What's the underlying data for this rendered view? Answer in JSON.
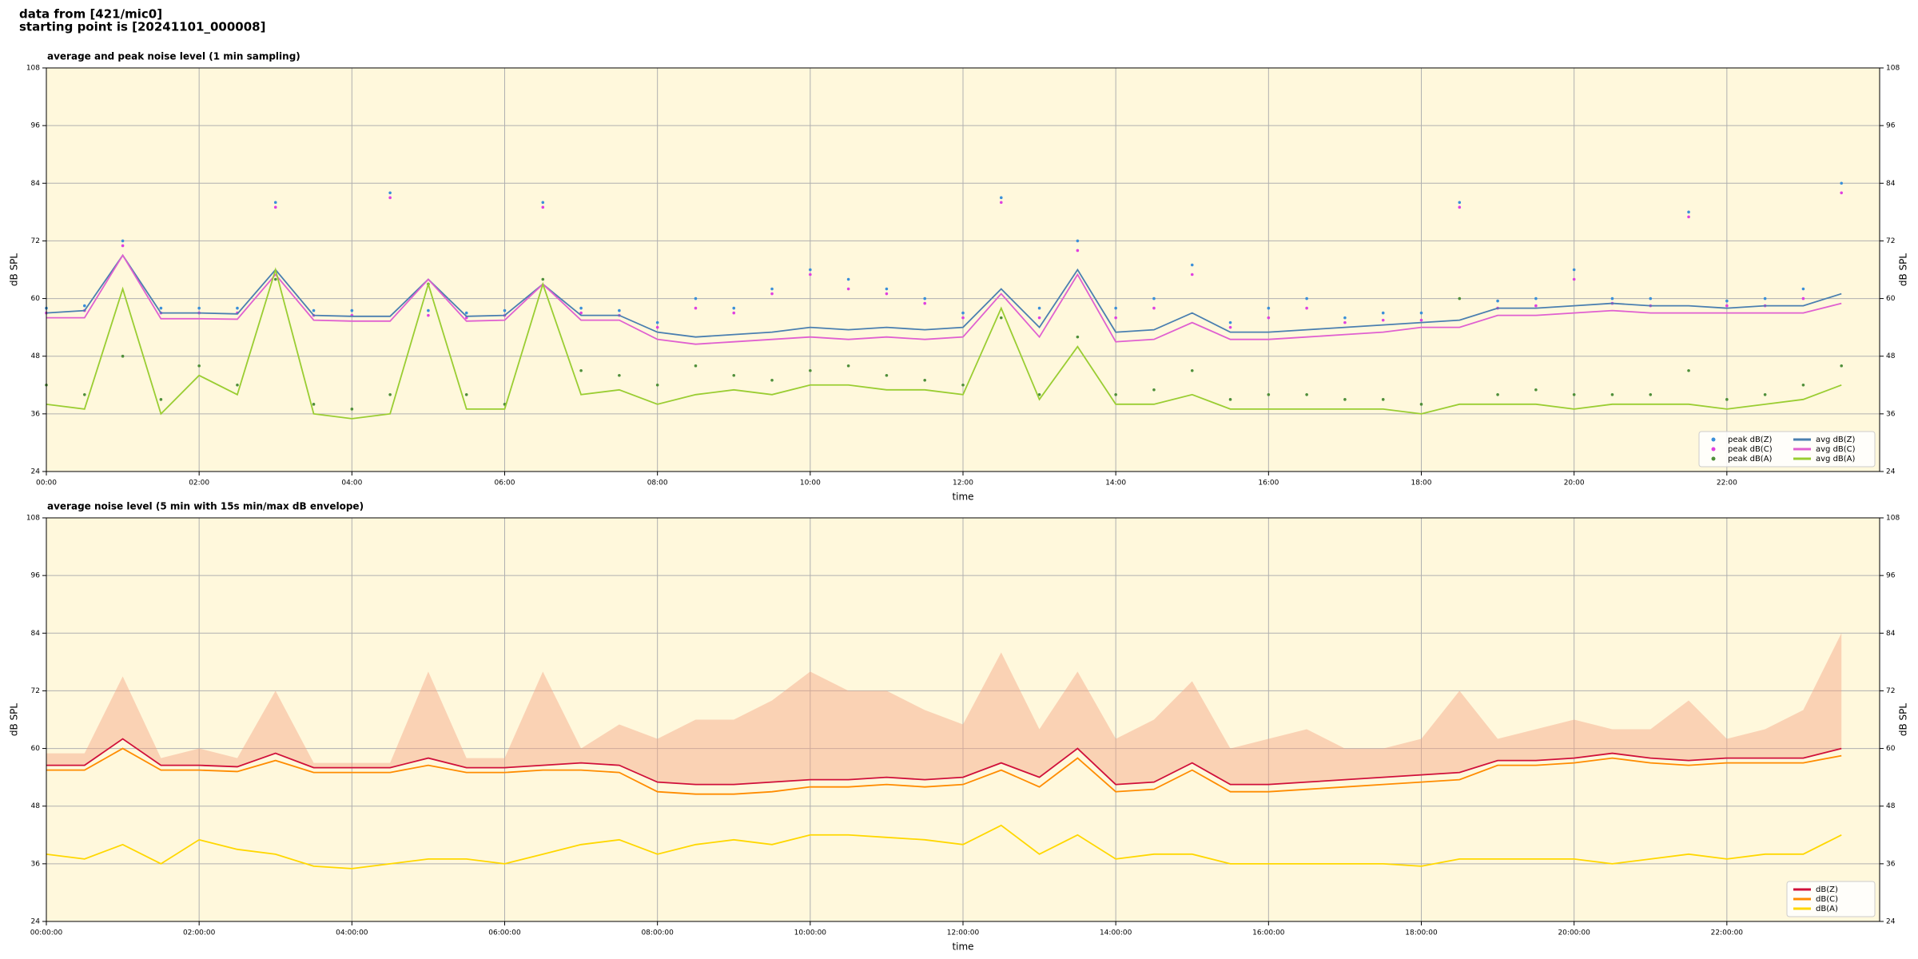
{
  "header": [
    "data from [421/mic0]",
    "starting point is [20241101_000008]"
  ],
  "chart_data": [
    {
      "type": "line",
      "title": "average and peak noise level (1 min sampling)",
      "xlabel": "time",
      "ylabel": "dB SPL",
      "x": [
        0,
        0.5,
        1,
        1.5,
        2,
        2.5,
        3,
        3.5,
        4,
        4.5,
        5,
        5.5,
        6,
        6.5,
        7,
        7.5,
        8,
        8.5,
        9,
        9.5,
        10,
        10.5,
        11,
        11.5,
        12,
        12.5,
        13,
        13.5,
        14,
        14.5,
        15,
        15.5,
        16,
        16.5,
        17,
        17.5,
        18,
        18.5,
        19,
        19.5,
        20,
        20.5,
        21,
        21.5,
        22,
        22.5,
        23,
        23.5
      ],
      "xlim": [
        0,
        24
      ],
      "xticks": [
        {
          "value": 0,
          "label": "00:00"
        },
        {
          "value": 2,
          "label": "02:00"
        },
        {
          "value": 4,
          "label": "04:00"
        },
        {
          "value": 6,
          "label": "06:00"
        },
        {
          "value": 8,
          "label": "08:00"
        },
        {
          "value": 10,
          "label": "10:00"
        },
        {
          "value": 12,
          "label": "12:00"
        },
        {
          "value": 14,
          "label": "14:00"
        },
        {
          "value": 16,
          "label": "16:00"
        },
        {
          "value": 18,
          "label": "18:00"
        },
        {
          "value": 20,
          "label": "20:00"
        },
        {
          "value": 22,
          "label": "22:00"
        }
      ],
      "ylim": [
        24,
        108
      ],
      "yticks": [
        24,
        36,
        48,
        60,
        72,
        84,
        96,
        108
      ],
      "grid": true,
      "legend": "lower right",
      "background": "#fff8dc",
      "series": [
        {
          "name": "peak dB(Z)",
          "type": "scatter",
          "color": "#3a8fd9",
          "values": [
            58,
            58.5,
            72,
            58,
            58,
            58,
            80,
            57.5,
            57.5,
            82,
            57.5,
            57,
            57.5,
            80,
            58,
            57.5,
            55,
            60,
            58,
            62,
            66,
            64,
            62,
            60,
            57,
            81,
            58,
            72,
            58,
            60,
            67,
            55,
            58,
            60,
            56,
            57,
            57,
            80,
            59.5,
            60,
            66,
            60,
            60,
            78,
            59.5,
            60,
            62,
            84
          ]
        },
        {
          "name": "peak dB(C)",
          "type": "scatter",
          "color": "#e040e0",
          "values": [
            57,
            57.5,
            71,
            57,
            57,
            57,
            79,
            56.5,
            56.5,
            81,
            56.5,
            56,
            56.5,
            79,
            57,
            56.5,
            54,
            58,
            57,
            61,
            65,
            62,
            61,
            59,
            56,
            80,
            56,
            70,
            56,
            58,
            65,
            54,
            56,
            58,
            55,
            55.5,
            55.5,
            79,
            58,
            58.5,
            64,
            59,
            58.5,
            77,
            58.5,
            58.5,
            60,
            82
          ]
        },
        {
          "name": "peak dB(A)",
          "type": "scatter",
          "color": "#4f8f3a",
          "values": [
            42,
            40,
            48,
            39,
            46,
            42,
            64,
            38,
            37,
            40,
            63,
            40,
            38,
            64,
            45,
            44,
            42,
            46,
            44,
            43,
            45,
            46,
            44,
            43,
            42,
            56,
            40,
            52,
            40,
            41,
            45,
            39,
            40,
            40,
            39,
            39,
            38,
            60,
            40,
            41,
            40,
            40,
            40,
            45,
            39,
            40,
            42,
            46
          ]
        },
        {
          "name": "avg dB(Z)",
          "type": "line",
          "color": "#4a7fb0",
          "values": [
            57,
            57.5,
            69,
            57,
            57,
            56.8,
            66,
            56.5,
            56.3,
            56.3,
            64,
            56.3,
            56.5,
            63,
            56.5,
            56.5,
            53,
            52,
            52.5,
            53,
            54,
            53.5,
            54,
            53.5,
            54,
            62,
            54,
            66,
            53,
            53.5,
            57,
            53,
            53,
            53.5,
            54,
            54.5,
            55,
            55.5,
            58,
            58,
            58.5,
            59,
            58.5,
            58.5,
            58,
            58.5,
            58.5,
            61
          ]
        },
        {
          "name": "avg dB(C)",
          "type": "line",
          "color": "#e060d0",
          "values": [
            56,
            56,
            69,
            55.8,
            55.8,
            55.7,
            65,
            55.5,
            55.3,
            55.3,
            64,
            55.3,
            55.5,
            63,
            55.5,
            55.5,
            51.5,
            50.5,
            51,
            51.5,
            52,
            51.5,
            52,
            51.5,
            52,
            61,
            52,
            65,
            51,
            51.5,
            55,
            51.5,
            51.5,
            52,
            52.5,
            53,
            54,
            54,
            56.5,
            56.5,
            57,
            57.5,
            57,
            57,
            57,
            57,
            57,
            59
          ]
        },
        {
          "name": "avg dB(A)",
          "type": "line",
          "color": "#9acd32",
          "values": [
            38,
            37,
            62,
            36,
            44,
            40,
            66,
            36,
            35,
            36,
            63,
            37,
            37,
            63,
            40,
            41,
            38,
            40,
            41,
            40,
            42,
            42,
            41,
            41,
            40,
            58,
            39,
            50,
            38,
            38,
            40,
            37,
            37,
            37,
            37,
            37,
            36,
            38,
            38,
            38,
            37,
            38,
            38,
            38,
            37,
            38,
            39,
            42
          ]
        }
      ]
    },
    {
      "type": "line",
      "title": "average noise level (5 min with 15s min/max dB envelope)",
      "xlabel": "time",
      "ylabel": "dB SPL",
      "x": [
        0,
        0.5,
        1,
        1.5,
        2,
        2.5,
        3,
        3.5,
        4,
        4.5,
        5,
        5.5,
        6,
        6.5,
        7,
        7.5,
        8,
        8.5,
        9,
        9.5,
        10,
        10.5,
        11,
        11.5,
        12,
        12.5,
        13,
        13.5,
        14,
        14.5,
        15,
        15.5,
        16,
        16.5,
        17,
        17.5,
        18,
        18.5,
        19,
        19.5,
        20,
        20.5,
        21,
        21.5,
        22,
        22.5,
        23,
        23.5
      ],
      "xlim": [
        0,
        24
      ],
      "xticks": [
        {
          "value": 0,
          "label": "00:00:00"
        },
        {
          "value": 2,
          "label": "02:00:00"
        },
        {
          "value": 4,
          "label": "04:00:00"
        },
        {
          "value": 6,
          "label": "06:00:00"
        },
        {
          "value": 8,
          "label": "08:00:00"
        },
        {
          "value": 10,
          "label": "10:00:00"
        },
        {
          "value": 12,
          "label": "12:00:00"
        },
        {
          "value": 14,
          "label": "14:00:00"
        },
        {
          "value": 16,
          "label": "16:00:00"
        },
        {
          "value": 18,
          "label": "18:00:00"
        },
        {
          "value": 20,
          "label": "20:00:00"
        },
        {
          "value": 22,
          "label": "22:00:00"
        }
      ],
      "ylim": [
        24,
        108
      ],
      "yticks": [
        24,
        36,
        48,
        60,
        72,
        84,
        96,
        108
      ],
      "grid": true,
      "legend": "lower right",
      "background": "#fff8dc",
      "envelope": {
        "color": "#f4a582",
        "values": [
          59,
          59,
          75,
          58,
          60,
          58,
          72,
          57,
          57,
          57,
          76,
          58,
          58,
          76,
          60,
          65,
          62,
          66,
          66,
          70,
          76,
          72,
          72,
          68,
          65,
          80,
          64,
          76,
          62,
          66,
          74,
          60,
          62,
          64,
          60,
          60,
          62,
          72,
          62,
          64,
          66,
          64,
          64,
          70,
          62,
          64,
          68,
          84
        ]
      },
      "series": [
        {
          "name": "dB(Z)",
          "type": "line",
          "color": "#d0103a",
          "values": [
            56.5,
            56.5,
            62,
            56.5,
            56.5,
            56.2,
            59,
            56,
            56,
            56,
            58,
            56,
            56,
            56.5,
            57,
            56.5,
            53,
            52.5,
            52.5,
            53,
            53.5,
            53.5,
            54,
            53.5,
            54,
            57,
            54,
            60,
            52.5,
            53,
            57,
            52.5,
            52.5,
            53,
            53.5,
            54,
            54.5,
            55,
            57.5,
            57.5,
            58,
            59,
            58,
            57.5,
            58,
            58,
            58,
            60
          ]
        },
        {
          "name": "dB(C)",
          "type": "line",
          "color": "#ff8c00",
          "values": [
            55.5,
            55.5,
            60,
            55.5,
            55.5,
            55.2,
            57.5,
            55,
            55,
            55,
            56.5,
            55,
            55,
            55.5,
            55.5,
            55,
            51,
            50.5,
            50.5,
            51,
            52,
            52,
            52.5,
            52,
            52.5,
            55.5,
            52,
            58,
            51,
            51.5,
            55.5,
            51,
            51,
            51.5,
            52,
            52.5,
            53,
            53.5,
            56.5,
            56.5,
            57,
            58,
            57,
            56.5,
            57,
            57,
            57,
            58.5
          ]
        },
        {
          "name": "dB(A)",
          "type": "line",
          "color": "#ffd700",
          "values": [
            38,
            37,
            40,
            36,
            41,
            39,
            38,
            35.5,
            35,
            36,
            37,
            37,
            36,
            38,
            40,
            41,
            38,
            40,
            41,
            40,
            42,
            42,
            41.5,
            41,
            40,
            44,
            38,
            42,
            37,
            38,
            38,
            36,
            36,
            36,
            36,
            36,
            35.5,
            37,
            37,
            37,
            37,
            36,
            37,
            38,
            37,
            38,
            38,
            42
          ]
        }
      ]
    }
  ]
}
